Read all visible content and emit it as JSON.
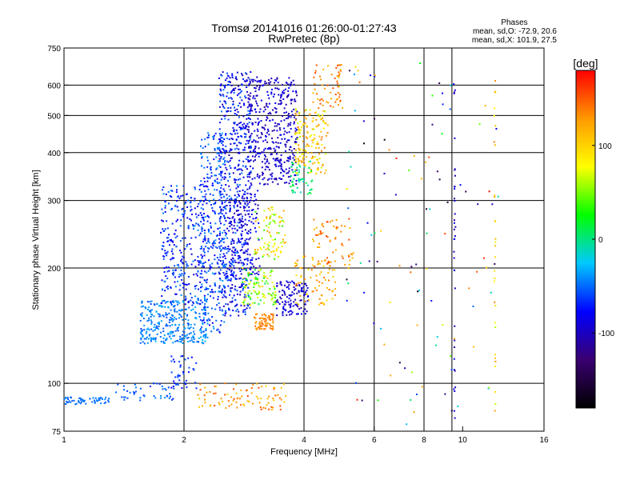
{
  "chart_data": {
    "type": "scatter",
    "title": "Tromsø 20141016 01:26:00-01:27:43",
    "subtitle": "RwPretec (8p)",
    "xlabel": "Frequency [MHz]",
    "ylabel": "Stationary phase Virtual Height [km]",
    "x_scale": "log",
    "y_scale": "log",
    "xlim": [
      1,
      16
    ],
    "ylim": [
      75,
      750
    ],
    "x_ticks": [
      1,
      2,
      4,
      6,
      8,
      10,
      16
    ],
    "y_ticks": [
      75,
      100,
      200,
      300,
      400,
      500,
      600,
      750
    ],
    "x_gridlines": [
      2,
      4,
      6,
      8,
      9.4
    ],
    "y_gridlines": [
      100,
      200,
      300,
      400,
      500,
      600
    ],
    "grid": true,
    "phase_stats": {
      "title": "Phases",
      "line1": "mean, sd,O: -72.9, 20.6",
      "line2": "mean, sd,X: 101.9, 27.5"
    },
    "colorbar": {
      "label": "[deg]",
      "range": [
        -180,
        180
      ],
      "ticks": [
        100,
        0,
        -100
      ],
      "colormap": [
        "#000000",
        "#3a0070",
        "#0000ff",
        "#00c8ff",
        "#00ff00",
        "#ffff00",
        "#ff9900",
        "#ff0000"
      ]
    },
    "series": [
      {
        "shape": "band",
        "x": [
          1.0,
          1.3
        ],
        "y": [
          88,
          92
        ],
        "phase": [
          -55,
          -40
        ],
        "n": 60
      },
      {
        "shape": "band",
        "x": [
          1.35,
          1.9
        ],
        "y": [
          90,
          100
        ],
        "phase": [
          -70,
          -40
        ],
        "n": 45
      },
      {
        "shape": "band",
        "x": [
          1.85,
          2.15
        ],
        "y": [
          95,
          118
        ],
        "phase": [
          -80,
          -50
        ],
        "n": 40
      },
      {
        "shape": "band",
        "x": [
          1.55,
          2.3
        ],
        "y": [
          127,
          165
        ],
        "phase": [
          -60,
          -30
        ],
        "n": 320
      },
      {
        "shape": "band",
        "x": [
          1.75,
          2.3
        ],
        "y": [
          160,
          330
        ],
        "phase": [
          -90,
          -40
        ],
        "n": 300
      },
      {
        "shape": "band",
        "x": [
          2.2,
          2.55
        ],
        "y": [
          135,
          450
        ],
        "phase": [
          -85,
          -35
        ],
        "n": 320
      },
      {
        "shape": "band",
        "x": [
          2.45,
          2.95
        ],
        "y": [
          150,
          650
        ],
        "phase": [
          -105,
          -45
        ],
        "n": 600
      },
      {
        "shape": "band",
        "x": [
          2.9,
          3.85
        ],
        "y": [
          330,
          630
        ],
        "phase": [
          -115,
          -75
        ],
        "n": 420
      },
      {
        "shape": "band",
        "x": [
          2.6,
          3.1
        ],
        "y": [
          190,
          330
        ],
        "phase": [
          -110,
          -70
        ],
        "n": 140
      },
      {
        "shape": "band",
        "x": [
          3.0,
          3.6
        ],
        "y": [
          210,
          290
        ],
        "phase": [
          30,
          130
        ],
        "n": 90
      },
      {
        "shape": "band",
        "x": [
          2.8,
          3.4
        ],
        "y": [
          160,
          200
        ],
        "phase": [
          10,
          100
        ],
        "n": 110
      },
      {
        "shape": "band",
        "x": [
          3.0,
          3.35
        ],
        "y": [
          138,
          152
        ],
        "phase": [
          120,
          150
        ],
        "n": 70
      },
      {
        "shape": "band",
        "x": [
          3.4,
          4.1
        ],
        "y": [
          150,
          185
        ],
        "phase": [
          -110,
          -80
        ],
        "n": 120
      },
      {
        "shape": "band",
        "x": [
          3.8,
          4.8
        ],
        "y": [
          160,
          215
        ],
        "phase": [
          90,
          150
        ],
        "n": 80
      },
      {
        "shape": "band",
        "x": [
          4.2,
          5.3
        ],
        "y": [
          200,
          270
        ],
        "phase": [
          110,
          160
        ],
        "n": 60
      },
      {
        "shape": "band",
        "x": [
          3.8,
          4.6
        ],
        "y": [
          350,
          520
        ],
        "phase": [
          60,
          140
        ],
        "n": 160
      },
      {
        "shape": "band",
        "x": [
          3.7,
          4.2
        ],
        "y": [
          310,
          380
        ],
        "phase": [
          -20,
          20
        ],
        "n": 50
      },
      {
        "shape": "band",
        "x": [
          4.2,
          5.0
        ],
        "y": [
          520,
          680
        ],
        "phase": [
          110,
          160
        ],
        "n": 60
      },
      {
        "shape": "band",
        "x": [
          2.15,
          3.6
        ],
        "y": [
          85,
          100
        ],
        "phase": [
          100,
          160
        ],
        "n": 90
      },
      {
        "shape": "band",
        "x": [
          5.0,
          12.5
        ],
        "y": [
          75,
          700
        ],
        "phase": [
          -180,
          180
        ],
        "n": 110
      },
      {
        "shape": "column",
        "x": [
          9.5,
          9.6
        ],
        "y": [
          75,
          620
        ],
        "phase": [
          -110,
          -80
        ],
        "n": 35
      },
      {
        "shape": "column",
        "x": [
          12.0,
          12.1
        ],
        "y": [
          80,
          620
        ],
        "phase": [
          60,
          140
        ],
        "n": 30
      }
    ]
  }
}
